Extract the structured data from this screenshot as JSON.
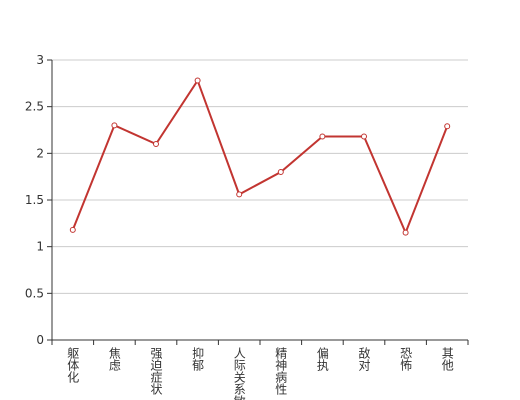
{
  "chart_data": {
    "type": "line",
    "categories": [
      "躯体化",
      "焦虑",
      "强迫症状",
      "抑郁",
      "人际关系敏感",
      "精神病性",
      "偏执",
      "敌对",
      "恐怖",
      "其他"
    ],
    "values": [
      1.18,
      2.3,
      2.1,
      2.78,
      1.56,
      1.8,
      2.18,
      2.18,
      1.15,
      2.29
    ],
    "color": "#c23531",
    "ylim": [
      0,
      3
    ],
    "yticks": [
      0,
      0.5,
      1,
      1.5,
      2,
      2.5,
      3
    ],
    "grid": true
  }
}
